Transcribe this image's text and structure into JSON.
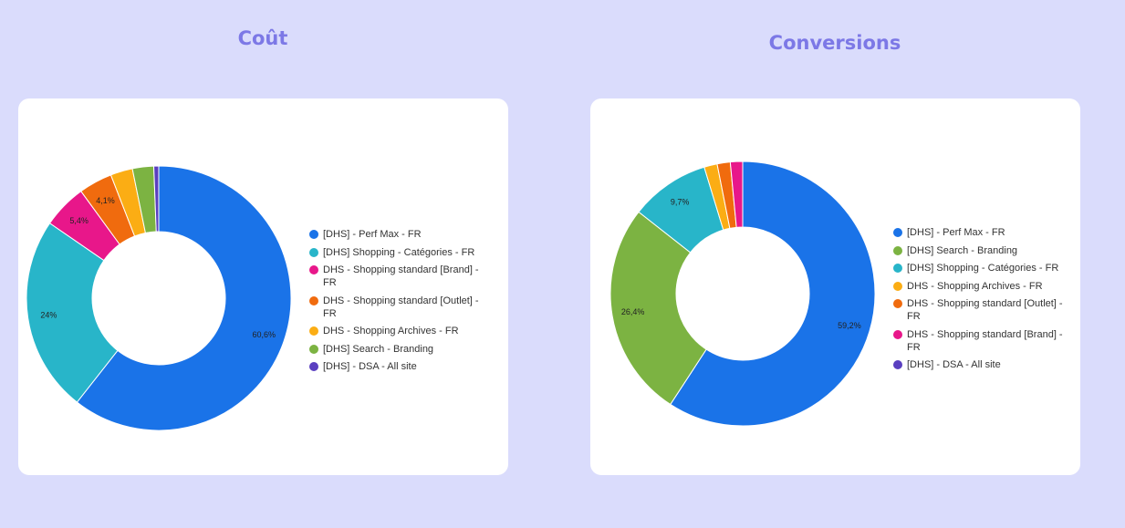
{
  "chart_data": [
    {
      "type": "pie",
      "donut": true,
      "title": "Coût",
      "legend": "right",
      "series": [
        {
          "name": "[DHS] - Perf Max - FR",
          "value": 60.6,
          "label": "60,6%",
          "color": "#1a73e8"
        },
        {
          "name": "[DHS] Shopping - Catégories - FR",
          "value": 24,
          "label": "24%",
          "color": "#28b5c9"
        },
        {
          "name": "DHS - Shopping standard [Brand] - FR",
          "value": 5.4,
          "label": "5,4%",
          "color": "#e8178a"
        },
        {
          "name": "DHS - Shopping standard [Outlet] - FR",
          "value": 4.1,
          "label": "4,1%",
          "color": "#f06b0e"
        },
        {
          "name": "DHS - Shopping Archives - FR",
          "value": 2.7,
          "label": "",
          "color": "#fbad14"
        },
        {
          "name": "[DHS] Search - Branding",
          "value": 2.6,
          "label": "",
          "color": "#7cb342"
        },
        {
          "name": "[DHS] - DSA - All site",
          "value": 0.6,
          "label": "",
          "color": "#5a3fc0"
        }
      ]
    },
    {
      "type": "pie",
      "donut": true,
      "title": "Conversions",
      "legend": "right",
      "series": [
        {
          "name": "[DHS] - Perf Max - FR",
          "value": 59.2,
          "label": "59,2%",
          "color": "#1a73e8"
        },
        {
          "name": "[DHS] Search - Branding",
          "value": 26.4,
          "label": "26,4%",
          "color": "#7cb342"
        },
        {
          "name": "[DHS] Shopping - Catégories - FR",
          "value": 9.7,
          "label": "9,7%",
          "color": "#28b5c9"
        },
        {
          "name": "DHS - Shopping Archives - FR",
          "value": 1.6,
          "label": "",
          "color": "#fbad14"
        },
        {
          "name": "DHS - Shopping standard [Outlet] - FR",
          "value": 1.6,
          "label": "",
          "color": "#f06b0e"
        },
        {
          "name": "DHS - Shopping standard [Brand] - FR",
          "value": 1.5,
          "label": "",
          "color": "#e8178a"
        },
        {
          "name": "[DHS] - DSA - All site",
          "value": 0,
          "label": "",
          "color": "#5a3fc0"
        }
      ]
    }
  ]
}
